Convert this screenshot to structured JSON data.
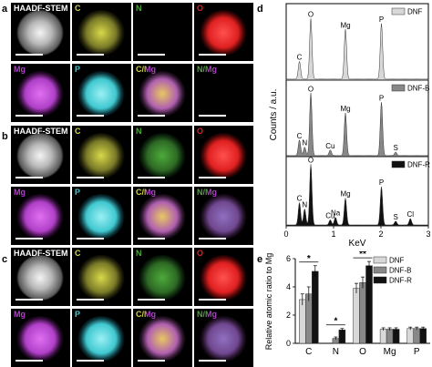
{
  "panels": {
    "a": "a",
    "b": "b",
    "c": "c",
    "d": "d",
    "e": "e"
  },
  "map_rows": [
    {
      "tiles": [
        {
          "label": "HAADF-STEM",
          "kind": "haadf"
        },
        {
          "label": "C",
          "kind": "C"
        },
        {
          "label": "N",
          "kind": "N_empty"
        },
        {
          "label": "O",
          "kind": "O"
        }
      ]
    },
    {
      "tiles": [
        {
          "label": "Mg",
          "kind": "Mg"
        },
        {
          "label": "P",
          "kind": "P"
        },
        {
          "label": "C/Mg",
          "kind": "CMg"
        },
        {
          "label": "N/Mg",
          "kind": "NMg_empty"
        }
      ]
    },
    {
      "tiles": [
        {
          "label": "HAADF-STEM",
          "kind": "haadf"
        },
        {
          "label": "C",
          "kind": "C"
        },
        {
          "label": "N",
          "kind": "N"
        },
        {
          "label": "O",
          "kind": "O"
        }
      ]
    },
    {
      "tiles": [
        {
          "label": "Mg",
          "kind": "Mg"
        },
        {
          "label": "P",
          "kind": "P"
        },
        {
          "label": "C/Mg",
          "kind": "CMg"
        },
        {
          "label": "N/Mg",
          "kind": "NMg"
        }
      ]
    },
    {
      "tiles": [
        {
          "label": "HAADF-STEM",
          "kind": "haadf"
        },
        {
          "label": "C",
          "kind": "C"
        },
        {
          "label": "N",
          "kind": "N"
        },
        {
          "label": "O",
          "kind": "O"
        }
      ]
    },
    {
      "tiles": [
        {
          "label": "Mg",
          "kind": "Mg"
        },
        {
          "label": "P",
          "kind": "P"
        },
        {
          "label": "C/Mg",
          "kind": "CMg"
        },
        {
          "label": "N/Mg",
          "kind": "NMg"
        }
      ]
    }
  ],
  "colors": {
    "C": "#d8d84a",
    "N": "#4caa3a",
    "O": "#e02020",
    "Mg": "#b040c8",
    "P": "#40c8d0",
    "DNF": "#d8d8d8",
    "DNF-B": "#888888",
    "DNF-R": "#111111"
  },
  "chart_data": [
    {
      "type": "line",
      "panel": "d",
      "ylabel": "Counts / a.u.",
      "xlabel": "KeV",
      "xlim": [
        0,
        3
      ],
      "xticks": [
        "0",
        "1",
        "2",
        "3"
      ],
      "series": [
        {
          "name": "DNF",
          "peaks": [
            {
              "x": 0.28,
              "h": 0.25
            },
            {
              "x": 0.52,
              "h": 0.85
            },
            {
              "x": 1.25,
              "h": 0.7
            },
            {
              "x": 2.01,
              "h": 0.78
            }
          ],
          "annotations": [
            {
              "text": "C",
              "x": 0.28
            },
            {
              "text": "O",
              "x": 0.52
            },
            {
              "text": "Mg",
              "x": 1.25
            },
            {
              "text": "P",
              "x": 2.01
            }
          ]
        },
        {
          "name": "DNF-B",
          "peaks": [
            {
              "x": 0.28,
              "h": 0.22
            },
            {
              "x": 0.39,
              "h": 0.12
            },
            {
              "x": 0.52,
              "h": 0.88
            },
            {
              "x": 0.93,
              "h": 0.08
            },
            {
              "x": 1.25,
              "h": 0.6
            },
            {
              "x": 2.01,
              "h": 0.75
            },
            {
              "x": 2.31,
              "h": 0.05
            }
          ],
          "annotations": [
            {
              "text": "C",
              "x": 0.28
            },
            {
              "text": "N",
              "x": 0.39
            },
            {
              "text": "O",
              "x": 0.52
            },
            {
              "text": "Cu",
              "x": 0.93
            },
            {
              "text": "Mg",
              "x": 1.25
            },
            {
              "text": "P",
              "x": 2.01
            },
            {
              "text": "S",
              "x": 2.31
            }
          ]
        },
        {
          "name": "DNF-R",
          "peaks": [
            {
              "x": 0.28,
              "h": 0.35
            },
            {
              "x": 0.39,
              "h": 0.25
            },
            {
              "x": 0.52,
              "h": 0.95
            },
            {
              "x": 0.93,
              "h": 0.08
            },
            {
              "x": 1.04,
              "h": 0.12
            },
            {
              "x": 1.25,
              "h": 0.42
            },
            {
              "x": 2.01,
              "h": 0.6
            },
            {
              "x": 2.31,
              "h": 0.06
            },
            {
              "x": 2.62,
              "h": 0.1
            }
          ],
          "annotations": [
            {
              "text": "C",
              "x": 0.28
            },
            {
              "text": "N",
              "x": 0.39
            },
            {
              "text": "O",
              "x": 0.52
            },
            {
              "text": "Cu",
              "x": 0.93
            },
            {
              "text": "Na",
              "x": 1.04
            },
            {
              "text": "Mg",
              "x": 1.25
            },
            {
              "text": "P",
              "x": 2.01
            },
            {
              "text": "S",
              "x": 2.31
            },
            {
              "text": "Cl",
              "x": 2.62
            }
          ]
        }
      ]
    },
    {
      "type": "bar",
      "panel": "e",
      "ylabel": "Relative atomic ratio to Mg",
      "ylim": [
        0,
        6
      ],
      "yticks": [
        "0",
        "2",
        "4",
        "6"
      ],
      "categories": [
        "C",
        "N",
        "O",
        "Mg",
        "P"
      ],
      "series": [
        {
          "name": "DNF",
          "values": [
            3.1,
            0.0,
            3.9,
            1.0,
            1.05
          ],
          "errors": [
            0.4,
            0.0,
            0.35,
            0.1,
            0.1
          ]
        },
        {
          "name": "DNF-B",
          "values": [
            3.5,
            0.35,
            4.3,
            1.0,
            1.05
          ],
          "errors": [
            0.5,
            0.1,
            0.4,
            0.1,
            0.1
          ]
        },
        {
          "name": "DNF-R",
          "values": [
            5.1,
            0.95,
            5.5,
            1.0,
            1.05
          ],
          "errors": [
            0.4,
            0.1,
            0.3,
            0.1,
            0.1
          ]
        }
      ],
      "significance": [
        {
          "text": "*",
          "category": "C"
        },
        {
          "text": "*",
          "category": "N"
        },
        {
          "text": "**",
          "category": "O"
        }
      ]
    }
  ]
}
